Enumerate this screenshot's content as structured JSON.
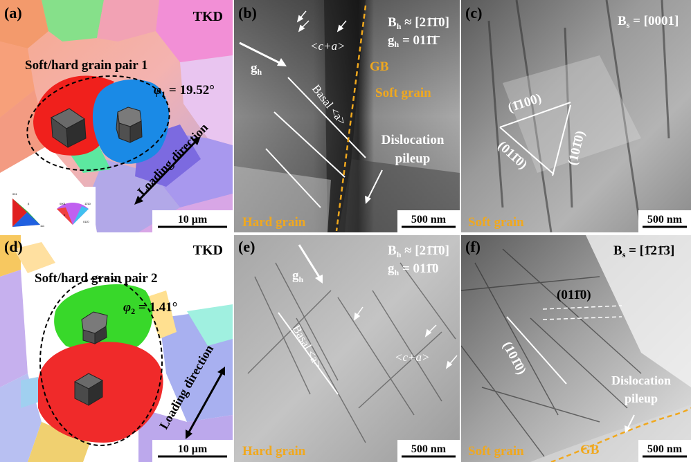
{
  "panels": {
    "a": {
      "label": "(a)",
      "mode": "TKD",
      "pair_title": "Soft/hard grain pair 1",
      "angle_symbol": "φ",
      "angle_sub": "1",
      "angle_value": " = 19.52°",
      "loading": "Loading direction",
      "scale": "10 μm",
      "ipf_labels": [
        "001",
        "β",
        "111",
        "0001",
        "1̄2̄10",
        "α",
        "011̄0"
      ]
    },
    "b": {
      "label": "(b)",
      "beam": "B",
      "beam_sub": "h",
      "beam_value": " ≈ [2",
      "beam_idx": [
        "1̄",
        "1̄",
        "0]"
      ],
      "g": "g",
      "g_sub": "h",
      "g_value": " = 011̄1̄",
      "ca": "<c+a>",
      "gh": "g",
      "gh_sub": "h",
      "basal": "Basal <a>",
      "gb": "GB",
      "soft": "Soft grain",
      "pileup": [
        "Dislocation",
        "pileup"
      ],
      "hard": "Hard grain",
      "scale": "500 nm"
    },
    "c": {
      "label": "(c)",
      "beam": "B",
      "beam_sub": "s",
      "beam_value": " = [0001]",
      "planes": [
        "(1̄100)",
        "(011̄0)",
        "(101̄0)"
      ],
      "soft": "Soft grain",
      "scale": "500 nm"
    },
    "d": {
      "label": "(d)",
      "mode": "TKD",
      "pair_title": "Soft/hard grain pair 2",
      "angle_symbol": "φ",
      "angle_sub": "2",
      "angle_value": " = 1.41°",
      "loading": "Loading direction",
      "scale": "10 μm"
    },
    "e": {
      "label": "(e)",
      "beam": "B",
      "beam_sub": "h",
      "beam_value": " ≈ [21̄1̄0]",
      "g": "g",
      "g_sub": "h",
      "g_value": " = 011̄0",
      "gh": "g",
      "gh_sub": "h",
      "basal": "Basal <a>",
      "ca": "<c+a>",
      "hard": "Hard grain",
      "scale": "500 nm"
    },
    "f": {
      "label": "(f)",
      "beam": "B",
      "beam_sub": "s",
      "beam_value": " = [1̄21̄3]",
      "planes": [
        "(011̄0)",
        "(101̄0)"
      ],
      "pileup": [
        "Dislocation",
        "pileup"
      ],
      "soft": "Soft grain",
      "gb": "GB",
      "scale": "500 nm"
    }
  },
  "colors": {
    "orange": "#f0a81e",
    "white": "#ffffff",
    "black": "#000000"
  }
}
